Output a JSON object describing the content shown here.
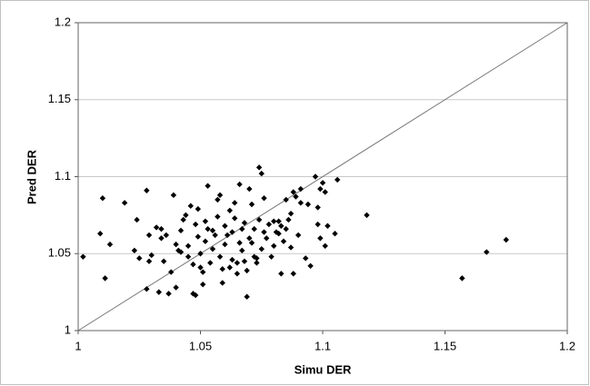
{
  "chart_data": {
    "type": "scatter",
    "x_label": "Simu DER",
    "y_label": "Pred DER",
    "xlim": [
      1,
      1.2
    ],
    "ylim": [
      1,
      1.2
    ],
    "xticks": [
      1,
      1.05,
      1.1,
      1.15,
      1.2
    ],
    "yticks": [
      1,
      1.05,
      1.1,
      1.15,
      1.2
    ],
    "grid": true,
    "color": "#000000",
    "x": [
      1.002,
      1.009,
      1.01,
      1.011,
      1.013,
      1.019,
      1.023,
      1.024,
      1.025,
      1.028,
      1.028,
      1.029,
      1.029,
      1.03,
      1.032,
      1.033,
      1.034,
      1.034,
      1.035,
      1.036,
      1.037,
      1.038,
      1.039,
      1.04,
      1.04,
      1.041,
      1.042,
      1.042,
      1.043,
      1.044,
      1.045,
      1.045,
      1.046,
      1.047,
      1.047,
      1.048,
      1.048,
      1.049,
      1.049,
      1.05,
      1.05,
      1.051,
      1.051,
      1.052,
      1.052,
      1.053,
      1.053,
      1.054,
      1.055,
      1.055,
      1.056,
      1.057,
      1.057,
      1.058,
      1.058,
      1.059,
      1.059,
      1.06,
      1.06,
      1.061,
      1.062,
      1.062,
      1.063,
      1.063,
      1.064,
      1.064,
      1.065,
      1.065,
      1.066,
      1.066,
      1.067,
      1.067,
      1.068,
      1.068,
      1.069,
      1.069,
      1.07,
      1.07,
      1.071,
      1.071,
      1.072,
      1.072,
      1.073,
      1.073,
      1.074,
      1.074,
      1.075,
      1.075,
      1.076,
      1.076,
      1.077,
      1.078,
      1.079,
      1.08,
      1.08,
      1.081,
      1.082,
      1.082,
      1.083,
      1.083,
      1.084,
      1.085,
      1.085,
      1.086,
      1.087,
      1.087,
      1.088,
      1.088,
      1.089,
      1.09,
      1.091,
      1.091,
      1.093,
      1.094,
      1.095,
      1.097,
      1.098,
      1.098,
      1.099,
      1.099,
      1.1,
      1.101,
      1.101,
      1.102,
      1.105,
      1.106,
      1.118,
      1.157,
      1.167,
      1.175
    ],
    "values": [
      1.048,
      1.063,
      1.086,
      1.034,
      1.056,
      1.083,
      1.052,
      1.072,
      1.047,
      1.091,
      1.027,
      1.062,
      1.045,
      1.049,
      1.067,
      1.025,
      1.066,
      1.06,
      1.045,
      1.062,
      1.024,
      1.038,
      1.088,
      1.056,
      1.028,
      1.052,
      1.051,
      1.065,
      1.072,
      1.075,
      1.048,
      1.055,
      1.081,
      1.043,
      1.024,
      1.023,
      1.069,
      1.079,
      1.061,
      1.041,
      1.05,
      1.038,
      1.03,
      1.058,
      1.071,
      1.066,
      1.094,
      1.044,
      1.065,
      1.053,
      1.062,
      1.085,
      1.074,
      1.088,
      1.048,
      1.04,
      1.031,
      1.068,
      1.056,
      1.062,
      1.078,
      1.041,
      1.064,
      1.046,
      1.083,
      1.073,
      1.037,
      1.044,
      1.057,
      1.095,
      1.066,
      1.052,
      1.045,
      1.07,
      1.022,
      1.039,
      1.06,
      1.092,
      1.082,
      1.057,
      1.048,
      1.066,
      1.047,
      1.044,
      1.106,
      1.072,
      1.102,
      1.053,
      1.064,
      1.086,
      1.06,
      1.069,
      1.048,
      1.055,
      1.071,
      1.064,
      1.063,
      1.071,
      1.037,
      1.068,
      1.058,
      1.066,
      1.085,
      1.072,
      1.054,
      1.076,
      1.037,
      1.09,
      1.087,
      1.062,
      1.092,
      1.083,
      1.047,
      1.082,
      1.042,
      1.1,
      1.069,
      1.08,
      1.06,
      1.092,
      1.096,
      1.055,
      1.09,
      1.068,
      1.063,
      1.098,
      1.075,
      1.034,
      1.051,
      1.059
    ]
  }
}
